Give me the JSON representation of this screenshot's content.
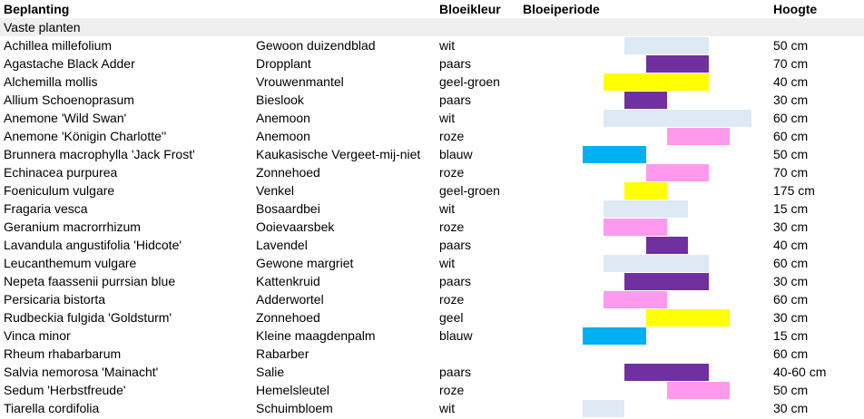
{
  "headers": [
    "Beplanting",
    "Bloeikleur",
    "Bloeiperiode",
    "Hoogte"
  ],
  "section_title": "Vaste planten",
  "colors": {
    "wit": "#dde9f5",
    "paars": "#7030a0",
    "geel-groen": "#ffff00",
    "roze": "#ff99ee",
    "blauw": "#00b0f0",
    "geel": "#ffff00"
  },
  "plants": [
    {
      "latin": "Achillea millefolium",
      "dutch": "Gewoon duizendblad",
      "color": "wit",
      "height": "50 cm",
      "bloom": [
        3,
        7
      ]
    },
    {
      "latin": "Agastache Black Adder",
      "dutch": "Dropplant",
      "color": "paars",
      "height": "70 cm",
      "bloom": [
        4,
        7
      ]
    },
    {
      "latin": "Alchemilla mollis",
      "dutch": "Vrouwenmantel",
      "color": "geel-groen",
      "height": "40 cm",
      "bloom": [
        2,
        7
      ]
    },
    {
      "latin": "Allium Schoenoprasum",
      "dutch": "Bieslook",
      "color": "paars",
      "height": "30 cm",
      "bloom": [
        3,
        5
      ]
    },
    {
      "latin": "Anemone 'Wild Swan'",
      "dutch": "Anemoon",
      "color": "wit",
      "height": "60 cm",
      "bloom": [
        2,
        9
      ]
    },
    {
      "latin": "Anemone 'Königin Charlotte''",
      "dutch": "Anemoon",
      "color": "roze",
      "height": "60 cm",
      "bloom": [
        5,
        8
      ]
    },
    {
      "latin": "Brunnera macrophylla 'Jack Frost'",
      "dutch": "Kaukasische Vergeet-mij-niet",
      "color": "blauw",
      "height": "50 cm",
      "bloom": [
        1,
        4
      ]
    },
    {
      "latin": "Echinacea purpurea",
      "dutch": "Zonnehoed",
      "color": "roze",
      "height": "70 cm",
      "bloom": [
        4,
        7
      ]
    },
    {
      "latin": "Foeniculum vulgare",
      "dutch": "Venkel",
      "color": "geel-groen",
      "height": "175 cm",
      "bloom": [
        3,
        5
      ]
    },
    {
      "latin": "Fragaria vesca",
      "dutch": "Bosaardbei",
      "color": "wit",
      "height": "15 cm",
      "bloom": [
        2,
        6
      ]
    },
    {
      "latin": "Geranium macrorrhizum",
      "dutch": "Ooievaarsbek",
      "color": "roze",
      "height": "30 cm",
      "bloom": [
        2,
        5
      ]
    },
    {
      "latin": "Lavandula angustifolia 'Hidcote'",
      "dutch": "Lavendel",
      "color": "paars",
      "height": "40 cm",
      "bloom": [
        4,
        6
      ]
    },
    {
      "latin": "Leucanthemum vulgare",
      "dutch": "Gewone margriet",
      "color": "wit",
      "height": "60 cm",
      "bloom": [
        2,
        7
      ]
    },
    {
      "latin": "Nepeta faassenii purrsian blue",
      "dutch": "Kattenkruid",
      "color": "paars",
      "height": "30 cm",
      "bloom": [
        3,
        7
      ]
    },
    {
      "latin": "Persicaria bistorta",
      "dutch": "Adderwortel",
      "color": "roze",
      "height": "60 cm",
      "bloom": [
        2,
        5
      ]
    },
    {
      "latin": "Rudbeckia fulgida 'Goldsturm'",
      "dutch": "Zonnehoed",
      "color": "geel",
      "height": "30 cm",
      "bloom": [
        4,
        8
      ]
    },
    {
      "latin": "Vinca minor",
      "dutch": "Kleine maagdenpalm",
      "color": "blauw",
      "height": "15 cm",
      "bloom": [
        1,
        4
      ]
    },
    {
      "latin": "Rheum rhabarbarum",
      "dutch": "Rabarber",
      "color": "",
      "height": "60 cm",
      "bloom": null
    },
    {
      "latin": "Salvia nemorosa 'Mainacht'",
      "dutch": "Salie",
      "color": "paars",
      "height": "40-60 cm",
      "bloom": [
        3,
        7
      ]
    },
    {
      "latin": "Sedum 'Herbstfreude'",
      "dutch": "Hemelsleutel",
      "color": "roze",
      "height": "50 cm",
      "bloom": [
        5,
        8
      ]
    },
    {
      "latin": "Tiarella cordifolia",
      "dutch": "Schuimbloem",
      "color": "wit",
      "height": "30 cm",
      "bloom": [
        1,
        3
      ]
    }
  ]
}
